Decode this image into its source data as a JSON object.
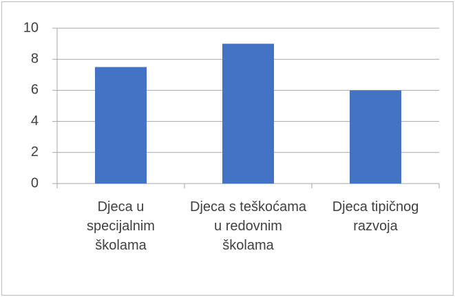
{
  "chart_data": {
    "type": "bar",
    "categories": [
      "Djeca u specijalnim školama",
      "Djeca s teškoćama u redovnim školama",
      "Djeca tipičnog razvoja"
    ],
    "values": [
      7.5,
      9,
      6
    ],
    "color": "#4472c4",
    "ylim": [
      0,
      10
    ],
    "yticks": [
      0,
      2,
      4,
      6,
      8,
      10
    ],
    "grid": true
  }
}
